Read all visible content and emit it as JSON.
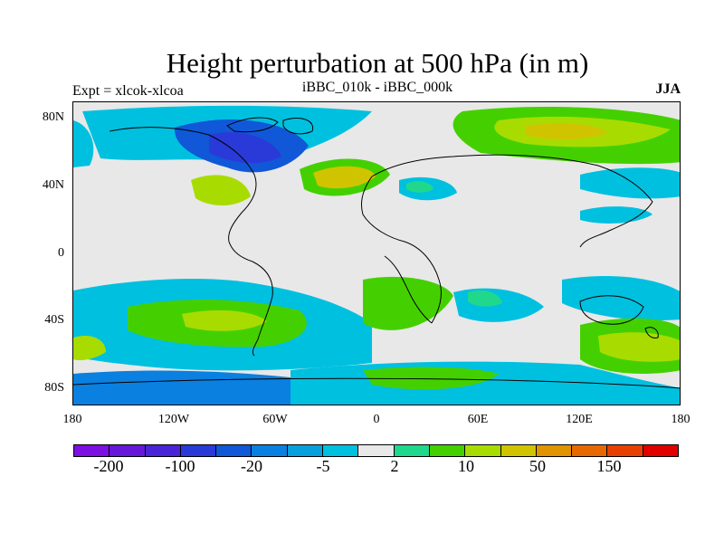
{
  "header": {
    "title": "Height perturbation at 500 hPa (in m)",
    "left_label": "Expt = xlcok-xlcoa",
    "center_label": "iBBC_010k - iBBC_000k",
    "right_label": "JJA"
  },
  "axes": {
    "lat_labels": [
      "80N",
      "40N",
      "0",
      "40S",
      "80S"
    ],
    "lon_labels": [
      "180",
      "120W",
      "60W",
      "0",
      "60E",
      "120E",
      "180"
    ]
  },
  "colorbar": {
    "colors": [
      "#7c10e0",
      "#6618d8",
      "#4a24d8",
      "#2a3ad8",
      "#1058d8",
      "#0a80e0",
      "#08a0dc",
      "#00c0e0",
      "#e8e8e8",
      "#20d88c",
      "#44d000",
      "#a8dc00",
      "#d0c400",
      "#e09400",
      "#e86800",
      "#e84000",
      "#e00000"
    ],
    "labels": [
      "-200",
      "-100",
      "-20",
      "-5",
      "2",
      "10",
      "50",
      "150"
    ]
  }
}
